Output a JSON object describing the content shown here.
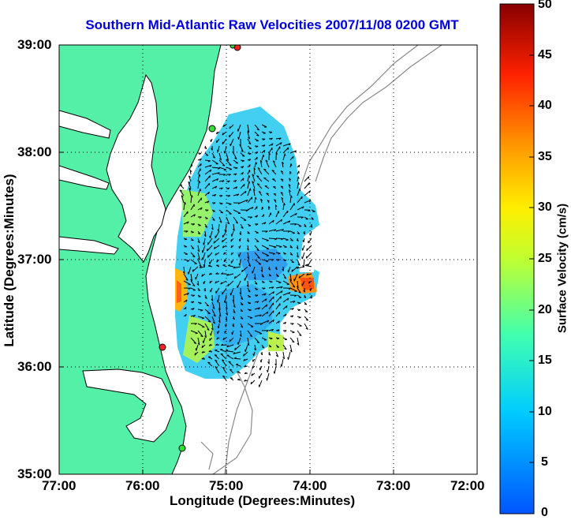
{
  "title": "Southern Mid-Atlantic Raw Velocities 2007/11/08 0200 GMT",
  "xlabel": "Longitude (Degrees:Minutes)",
  "ylabel": "Latitude (Degrees:Minutes)",
  "xticks": [
    "77:00",
    "76:00",
    "75:00",
    "74:00",
    "73:00",
    "72:00"
  ],
  "yticks": [
    "39:00",
    "38:00",
    "37:00",
    "36:00",
    "35:00"
  ],
  "colorbar": {
    "label": "Surface Velocity (cm/s)",
    "ticks": [
      "0",
      "5",
      "10",
      "15",
      "20",
      "25",
      "30",
      "35",
      "40",
      "45",
      "50"
    ],
    "range": [
      0,
      50
    ]
  },
  "colors": {
    "land": "#55f0a8",
    "title": "#0000dd",
    "site_red": "#ff2020",
    "site_green": "#30e030"
  }
}
